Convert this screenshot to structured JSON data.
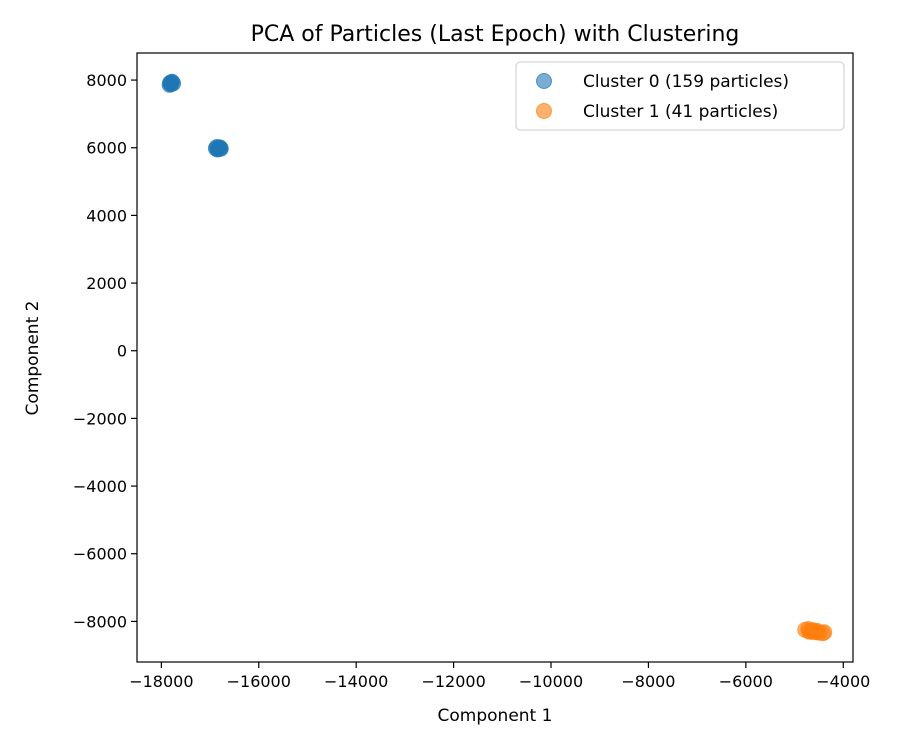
{
  "chart_data": {
    "type": "scatter",
    "title": "PCA of Particles (Last Epoch) with Clustering",
    "xlabel": "Component 1",
    "ylabel": "Component 2",
    "xlim": [
      -18500,
      -3800
    ],
    "ylim": [
      -9200,
      8800
    ],
    "xticks": [
      -18000,
      -16000,
      -14000,
      -12000,
      -10000,
      -8000,
      -6000,
      -4000
    ],
    "yticks": [
      -8000,
      -6000,
      -4000,
      -2000,
      0,
      2000,
      4000,
      6000,
      8000
    ],
    "xtick_labels": [
      "−18000",
      "−16000",
      "−14000",
      "−12000",
      "−10000",
      "−8000",
      "−6000",
      "−4000"
    ],
    "ytick_labels": [
      "−8000",
      "−6000",
      "−4000",
      "−2000",
      "0",
      "2000",
      "4000",
      "6000",
      "8000"
    ],
    "grid": false,
    "legend_position": "top-right",
    "series": [
      {
        "name": "Cluster 0 (159 particles)",
        "color": "#1f77b4",
        "points": [
          [
            -17820,
            7920
          ],
          [
            -17780,
            7950
          ],
          [
            -17800,
            7880
          ],
          [
            -17760,
            7900
          ],
          [
            -17830,
            7860
          ],
          [
            -17790,
            7940
          ],
          [
            -17810,
            7900
          ],
          [
            -16880,
            5980
          ],
          [
            -16820,
            6000
          ],
          [
            -16850,
            5950
          ],
          [
            -16780,
            5970
          ],
          [
            -16800,
            6010
          ],
          [
            -16860,
            6020
          ],
          [
            -16830,
            5960
          ],
          [
            -16790,
            5990
          ]
        ]
      },
      {
        "name": "Cluster 1 (41 particles)",
        "color": "#ff7f0e",
        "points": [
          [
            -4780,
            -8250
          ],
          [
            -4720,
            -8230
          ],
          [
            -4680,
            -8280
          ],
          [
            -4650,
            -8310
          ],
          [
            -4600,
            -8300
          ],
          [
            -4560,
            -8320
          ],
          [
            -4500,
            -8330
          ],
          [
            -4420,
            -8350
          ],
          [
            -4390,
            -8320
          ],
          [
            -4620,
            -8260
          ],
          [
            -4700,
            -8300
          ],
          [
            -4540,
            -8280
          ]
        ]
      }
    ]
  }
}
